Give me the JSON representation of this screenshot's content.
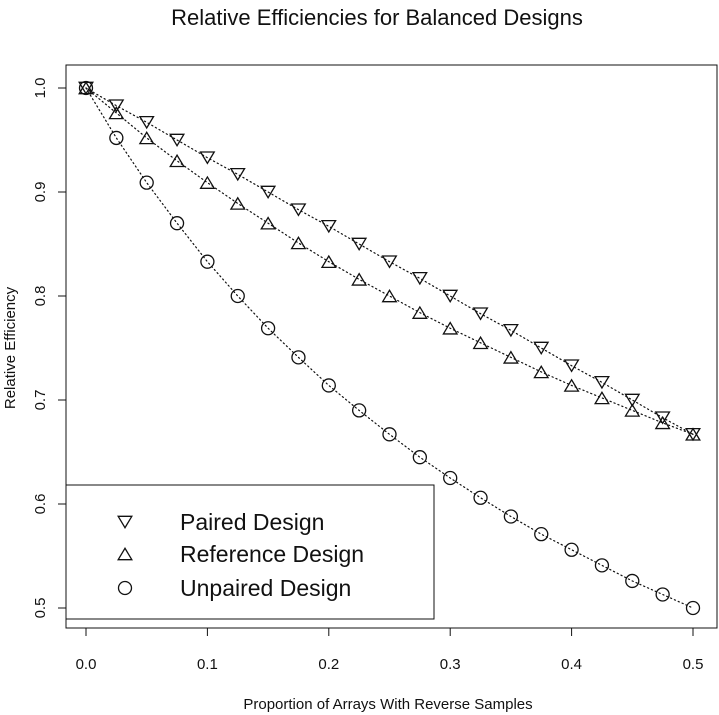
{
  "chart_data": {
    "type": "scatter",
    "title": "Relative Efficiencies for Balanced Designs",
    "xlabel": "Proportion of Arrays With Reverse Samples",
    "ylabel": "Relative Efficiency",
    "xlim": [
      0,
      0.5
    ],
    "ylim": [
      0.5,
      1.0
    ],
    "xticks": [
      0.0,
      0.1,
      0.2,
      0.3,
      0.4,
      0.5
    ],
    "xtick_labels": [
      "0.0",
      "0.1",
      "0.2",
      "0.3",
      "0.4",
      "0.5"
    ],
    "yticks": [
      0.5,
      0.6,
      0.7,
      0.8,
      0.9,
      1.0
    ],
    "ytick_labels": [
      "0.5",
      "0.6",
      "0.7",
      "0.8",
      "0.9",
      "1.0"
    ],
    "grid": false,
    "legend_position": "bottom-left",
    "x": [
      0.0,
      0.025,
      0.05,
      0.075,
      0.1,
      0.125,
      0.15,
      0.175,
      0.2,
      0.225,
      0.25,
      0.275,
      0.3,
      0.325,
      0.35,
      0.375,
      0.4,
      0.425,
      0.45,
      0.475,
      0.5
    ],
    "series": [
      {
        "name": "Paired Design",
        "marker": "triangle-down",
        "line": "dotted",
        "values": [
          1.0,
          0.983,
          0.967,
          0.95,
          0.933,
          0.917,
          0.9,
          0.883,
          0.867,
          0.85,
          0.833,
          0.817,
          0.8,
          0.783,
          0.767,
          0.75,
          0.733,
          0.717,
          0.7,
          0.683,
          0.667
        ]
      },
      {
        "name": "Reference Design",
        "marker": "triangle-up",
        "line": "dotted",
        "values": [
          1.0,
          0.976,
          0.952,
          0.93,
          0.909,
          0.889,
          0.87,
          0.851,
          0.833,
          0.816,
          0.8,
          0.784,
          0.769,
          0.755,
          0.741,
          0.727,
          0.714,
          0.702,
          0.69,
          0.678,
          0.667
        ]
      },
      {
        "name": "Unpaired Design",
        "marker": "circle",
        "line": "dotted",
        "values": [
          1.0,
          0.952,
          0.909,
          0.87,
          0.833,
          0.8,
          0.769,
          0.741,
          0.714,
          0.69,
          0.667,
          0.645,
          0.625,
          0.606,
          0.588,
          0.571,
          0.556,
          0.541,
          0.526,
          0.513,
          0.5
        ]
      }
    ],
    "colors": {
      "ink": "#111111",
      "background": "#ffffff"
    }
  }
}
